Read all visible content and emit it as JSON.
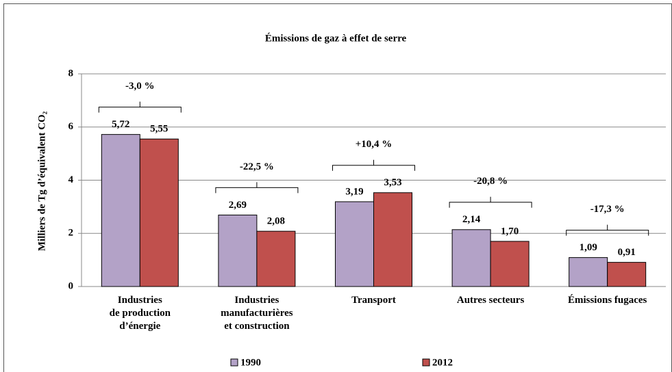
{
  "chart_data": {
    "type": "bar",
    "title": "Émissions de gaz à effet de serre",
    "y_label": "Milliers de Tg d’équivalent CO₂",
    "categories": [
      "Industries\nde production\nd’énergie",
      "Industries\nmanufacturières\net construction",
      "Transport",
      "Autres secteurs",
      "Émissions fugaces"
    ],
    "series": [
      {
        "name": "1990",
        "color": "#b3a2c7",
        "values": [
          5.72,
          2.69,
          3.19,
          2.14,
          1.09
        ],
        "value_labels": [
          "5,72",
          "2,69",
          "3,19",
          "2,14",
          "1,09"
        ]
      },
      {
        "name": "2012",
        "color": "#c0504d",
        "values": [
          5.55,
          2.08,
          3.53,
          1.7,
          0.91
        ],
        "value_labels": [
          "5,55",
          "2,08",
          "3,53",
          "1,70",
          "0,91"
        ]
      }
    ],
    "annotations": [
      "-3,0 %",
      "-22,5 %",
      "+10,4 %",
      "-20,8 %",
      "-17,3 %"
    ],
    "ylim": [
      0,
      8
    ],
    "yticks": [
      0,
      2,
      4,
      6,
      8
    ],
    "grid": true,
    "legend": "bottom"
  }
}
